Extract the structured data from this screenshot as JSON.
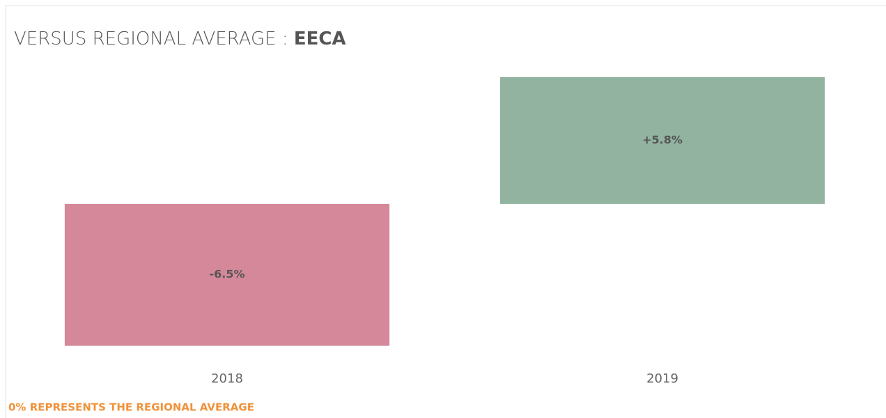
{
  "chart_data": {
    "type": "bar",
    "title": "VERSUS REGIONAL AVERAGE : ",
    "title_highlight": "EECA",
    "categories": [
      "2018",
      "2019"
    ],
    "values": [
      -6.5,
      5.8
    ],
    "value_labels": [
      "-6.5%",
      "+5.8%"
    ],
    "colors": [
      "#d5889a",
      "#91b3a0"
    ],
    "footnote": "0% REPRESENTS THE REGIONAL AVERAGE"
  }
}
